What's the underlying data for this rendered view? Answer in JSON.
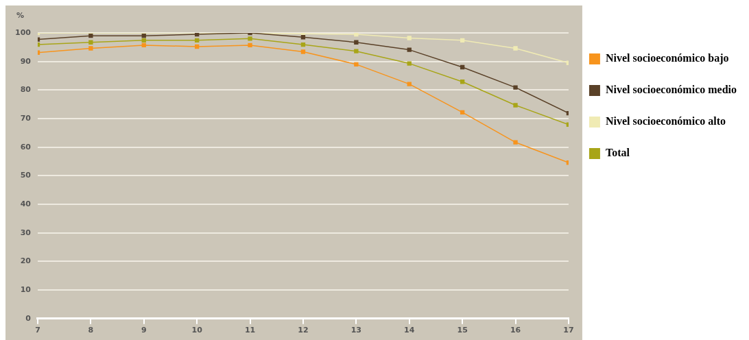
{
  "chart_data": {
    "type": "line",
    "ylabel": "%",
    "x": [
      7,
      8,
      9,
      10,
      11,
      12,
      13,
      14,
      15,
      16,
      17
    ],
    "xlim": [
      7,
      17
    ],
    "xticks": [
      7,
      8,
      9,
      10,
      11,
      12,
      13,
      14,
      15,
      16,
      17
    ],
    "ylim": [
      0,
      100
    ],
    "yticks": [
      0,
      10,
      20,
      30,
      40,
      50,
      60,
      70,
      80,
      90,
      100
    ],
    "grid": "y",
    "legend": "right",
    "marker": "square",
    "line_style": "solid",
    "series": [
      {
        "name": "Nivel socioeconómico bajo",
        "color": "#f7941d",
        "values": [
          93.1,
          94.6,
          95.7,
          95.2,
          95.7,
          93.4,
          89,
          82.1,
          72.2,
          61.7,
          54.6
        ]
      },
      {
        "name": "Nivel socioeconómico medio",
        "color": "#5a4128",
        "values": [
          97.7,
          99,
          99,
          99.5,
          100,
          98.5,
          96.7,
          94.1,
          88,
          80.9,
          71.9
        ]
      },
      {
        "name": "Nivel socioeconómico alto",
        "color": "#f0ebb4",
        "values": [
          100,
          100,
          100,
          100,
          null,
          99.7,
          99.5,
          98.2,
          97.4,
          94.6,
          89.5
        ]
      },
      {
        "name": "Total",
        "color": "#a8a518",
        "values": [
          95.9,
          96.7,
          97.4,
          97.4,
          98,
          95.9,
          93.6,
          89.3,
          82.9,
          74.7,
          67.9
        ]
      }
    ]
  }
}
